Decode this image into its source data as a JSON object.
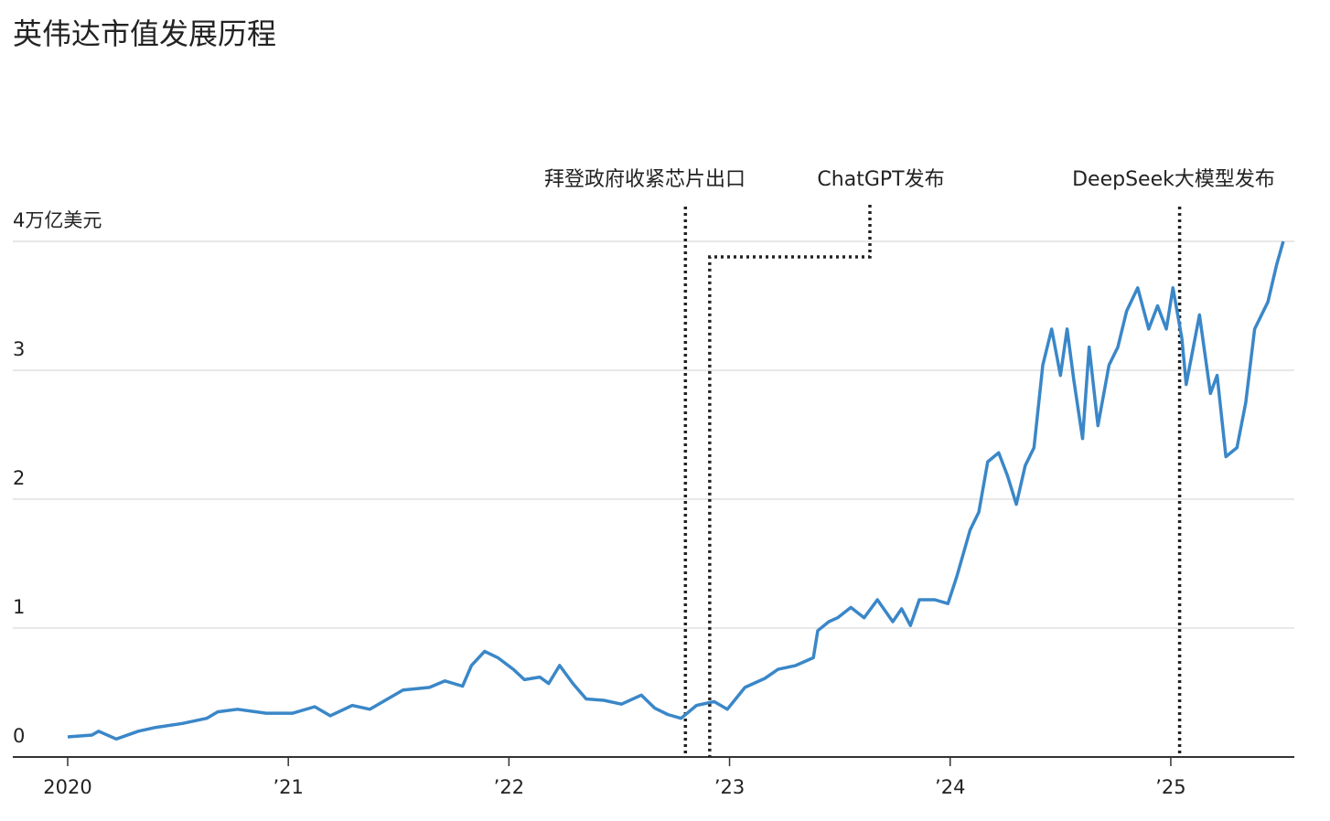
{
  "chart_data": {
    "type": "line",
    "title": "英伟达市值发展历程",
    "color": "#3a87c8",
    "grid": true,
    "xlim": [
      2020,
      2025.56
    ],
    "xticks": [
      2020,
      {
        "value": 2021,
        "label": "’21"
      },
      {
        "value": 2022,
        "label": "’22"
      },
      {
        "value": 2023,
        "label": "’23"
      },
      {
        "value": 2024,
        "label": "’24"
      },
      {
        "value": 2025,
        "label": "’25"
      }
    ],
    "ylim": [
      0,
      4
    ],
    "yticks": [
      0,
      1,
      2,
      3,
      {
        "value": 4,
        "label": "4万亿美元"
      }
    ],
    "annotations": [
      {
        "text": "拜登政府收紧芯片出口",
        "x": 2022.8
      },
      {
        "text": "ChatGPT发布",
        "x": 2022.91
      },
      {
        "text": "DeepSeek大模型发布",
        "x": 2025.04
      }
    ],
    "x": [
      2020.0,
      2020.11,
      2020.14,
      2020.22,
      2020.32,
      2020.4,
      2020.52,
      2020.63,
      2020.68,
      2020.77,
      2020.9,
      2021.02,
      2021.12,
      2021.19,
      2021.29,
      2021.37,
      2021.52,
      2021.64,
      2021.71,
      2021.79,
      2021.83,
      2021.89,
      2021.95,
      2022.02,
      2022.07,
      2022.14,
      2022.18,
      2022.23,
      2022.29,
      2022.35,
      2022.43,
      2022.51,
      2022.6,
      2022.66,
      2022.72,
      2022.78,
      2022.85,
      2022.93,
      2022.99,
      2023.07,
      2023.16,
      2023.22,
      2023.3,
      2023.38,
      2023.4,
      2023.45,
      2023.49,
      2023.55,
      2023.61,
      2023.67,
      2023.74,
      2023.78,
      2023.82,
      2023.86,
      2023.93,
      2023.99,
      2024.03,
      2024.09,
      2024.13,
      2024.17,
      2024.22,
      2024.26,
      2024.3,
      2024.34,
      2024.38,
      2024.42,
      2024.46,
      2024.5,
      2024.53,
      2024.56,
      2024.6,
      2024.63,
      2024.67,
      2024.72,
      2024.76,
      2024.8,
      2024.85,
      2024.9,
      2024.94,
      2024.98,
      2025.01,
      2025.05,
      2025.07,
      2025.13,
      2025.18,
      2025.21,
      2025.25,
      2025.3,
      2025.34,
      2025.38,
      2025.44,
      2025.48,
      2025.51
    ],
    "values": [
      0.156,
      0.17,
      0.2,
      0.14,
      0.2,
      0.23,
      0.26,
      0.3,
      0.35,
      0.37,
      0.34,
      0.34,
      0.39,
      0.32,
      0.4,
      0.37,
      0.52,
      0.54,
      0.59,
      0.55,
      0.71,
      0.82,
      0.77,
      0.68,
      0.6,
      0.62,
      0.57,
      0.71,
      0.57,
      0.45,
      0.44,
      0.41,
      0.48,
      0.38,
      0.33,
      0.3,
      0.4,
      0.43,
      0.37,
      0.54,
      0.61,
      0.68,
      0.71,
      0.77,
      0.98,
      1.05,
      1.08,
      1.16,
      1.08,
      1.22,
      1.05,
      1.15,
      1.02,
      1.22,
      1.22,
      1.19,
      1.4,
      1.76,
      1.9,
      2.29,
      2.36,
      2.18,
      1.96,
      2.26,
      2.4,
      3.04,
      3.32,
      2.96,
      3.32,
      2.93,
      2.47,
      3.18,
      2.57,
      3.04,
      3.18,
      3.46,
      3.64,
      3.32,
      3.5,
      3.32,
      3.64,
      3.25,
      2.89,
      3.43,
      2.82,
      2.96,
      2.33,
      2.4,
      2.75,
      3.32,
      3.53,
      3.82,
      4.0
    ]
  }
}
